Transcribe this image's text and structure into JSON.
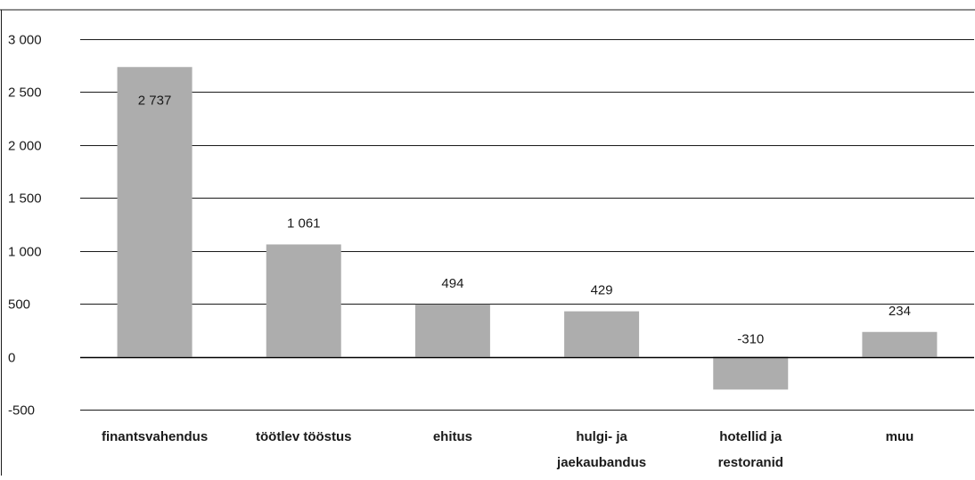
{
  "chart_data": {
    "type": "bar",
    "categories": [
      [
        "finantsvahendus"
      ],
      [
        "töötlev tööstus"
      ],
      [
        "ehitus"
      ],
      [
        "hulgi- ja",
        "jaekaubandus"
      ],
      [
        "hotellid ja",
        "restoranid"
      ],
      [
        "muu"
      ]
    ],
    "values": [
      2737,
      1061,
      494,
      429,
      -310,
      234
    ],
    "data_labels": [
      "2 737",
      "1 061",
      "494",
      "429",
      "-310",
      "234"
    ],
    "ylim": [
      -500,
      3000
    ],
    "yticks": [
      3000,
      2500,
      2000,
      1500,
      1000,
      500,
      0,
      -500
    ],
    "ytick_labels": [
      "3 000",
      "2 500",
      "2 000",
      "1 500",
      "1 000",
      "500",
      "0",
      "-500"
    ],
    "grid": true,
    "colors": {
      "bar": "#adadad",
      "grid": "#1a1a1a",
      "text": "#1a1a1a"
    }
  }
}
